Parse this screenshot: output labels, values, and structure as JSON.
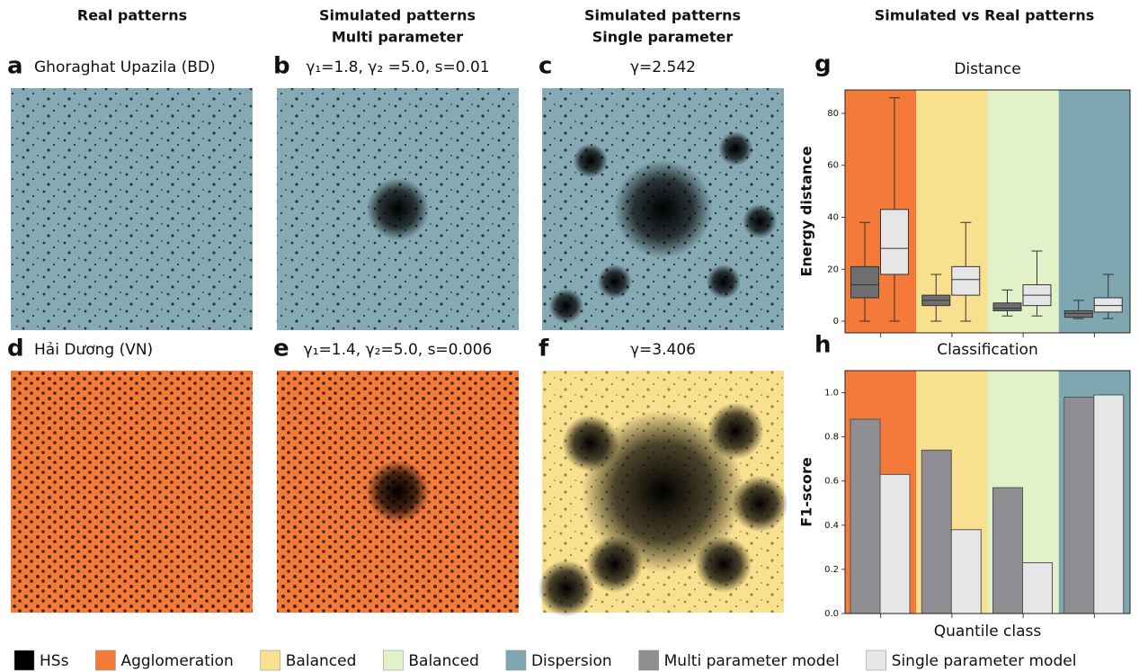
{
  "columns": [
    [
      "Real patterns"
    ],
    [
      "Simulated patterns",
      "Multi parameter"
    ],
    [
      "Simulated patterns",
      "Single parameter"
    ],
    [
      "Simulated vs Real patterns"
    ]
  ],
  "panels": [
    {
      "letter": "a",
      "title": "Ghoraghat Upazila (BD)",
      "color": "#86aab4"
    },
    {
      "letter": "b",
      "title": "γ₁=1.8, γ₂ =5.0, s=0.01",
      "color": "#86aab4"
    },
    {
      "letter": "c",
      "title": "γ=2.542",
      "color": "#86aab4"
    },
    {
      "letter": "d",
      "title": "Hải Dương (VN)",
      "color": "#f47a3a"
    },
    {
      "letter": "e",
      "title": "γ₁=1.4, γ₂=5.0, s=0.006",
      "color": "#f47a3a"
    },
    {
      "letter": "f",
      "title": "γ=3.406",
      "color": "#f9e08f"
    }
  ],
  "hs": {
    "name": "HSs",
    "color": "#000000"
  },
  "classes": [
    {
      "name": "Agglomeration",
      "color": "#f47a3a"
    },
    {
      "name": "Balanced",
      "color": "#f9e08f"
    },
    {
      "name": "Balanced",
      "color": "#e2f2c8"
    },
    {
      "name": "Dispersion",
      "color": "#7fa7b1"
    }
  ],
  "chart_data": [
    {
      "type": "box",
      "letter": "g",
      "title": "Distance",
      "y_label": "Energy distance",
      "categories": [
        null,
        null,
        null,
        null
      ],
      "series": [
        {
          "color": "#6e6e70",
          "values": [
            [
              0,
              9,
              14,
              21,
              38
            ],
            [
              0,
              6,
              8,
              10,
              18
            ],
            [
              2,
              4,
              5,
              7,
              12
            ],
            [
              1,
              1.5,
              3,
              4,
              8
            ]
          ]
        },
        {
          "color": "#e6e6e8",
          "values": [
            [
              0,
              18,
              28,
              43,
              86
            ],
            [
              0,
              10,
              16,
              21,
              38
            ],
            [
              2,
              6,
              10,
              14,
              27
            ],
            [
              1,
              3.5,
              6,
              9,
              18
            ]
          ]
        }
      ],
      "ylim": [
        -4.5,
        89
      ],
      "yticks": [
        0,
        20,
        40,
        60,
        80
      ]
    },
    {
      "type": "bar",
      "letter": "h",
      "title": "Classification",
      "y_label": "F1-score",
      "x_label": "Quantile class",
      "categories": [
        null,
        null,
        null,
        null
      ],
      "series": [
        {
          "name": "Multi parameter model",
          "color": "#8e8e92",
          "values": [
            0.88,
            0.74,
            0.57,
            0.98
          ]
        },
        {
          "name": "Single parameter model",
          "color": "#e6e6e8",
          "values": [
            0.63,
            0.38,
            0.23,
            0.99
          ]
        }
      ],
      "ylim": [
        0,
        1.1
      ],
      "yticks": [
        {
          "value": 0,
          "label": "0.0"
        },
        {
          "value": 0.2,
          "label": "0.2"
        },
        {
          "value": 0.4,
          "label": "0.4"
        },
        {
          "value": 0.6,
          "label": "0.6"
        },
        {
          "value": 0.8,
          "label": "0.8"
        },
        {
          "value": 1,
          "label": "1.0"
        }
      ]
    }
  ]
}
